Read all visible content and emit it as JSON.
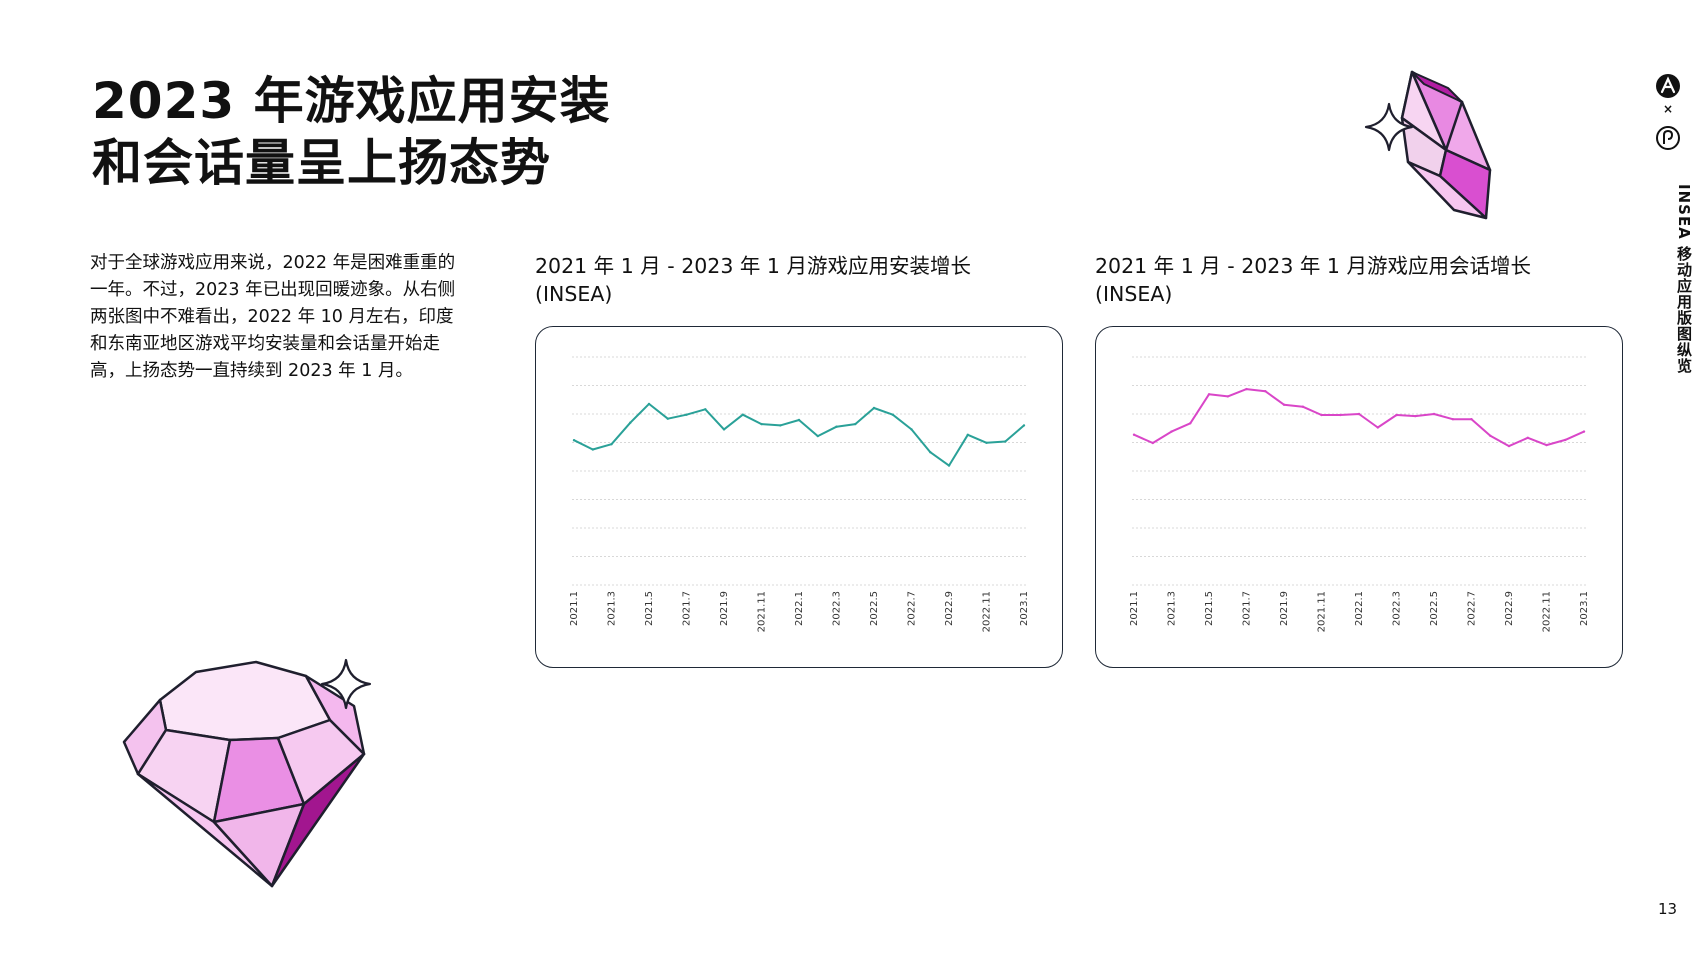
{
  "page": {
    "title_line1": "2023 年游戏应用安装",
    "title_line2": "和会话量呈上扬态势",
    "body": "对于全球游戏应用来说，2022 年是困难重重的一年。不过，2023 年已出现回暖迹象。从右侧两张图中不难看出，2022 年 10 月左右，印度和东南亚地区游戏平均安装量和会话量开始走高，上扬态势一直持续到 2023 年 1 月。",
    "sidebar_label": "INSEA 移动应用版图纵览",
    "page_number": "13",
    "logo_separator": "×"
  },
  "colors": {
    "installs_line": "#2aa198",
    "sessions_line": "#d946c8",
    "gem_light": "#f5c6ef",
    "gem_mid": "#e889e2",
    "gem_dark": "#b21ea3"
  },
  "icons": [
    "applovin-logo-icon",
    "partner-logo-icon",
    "crystal-decoration-icon",
    "gem-decoration-icon",
    "sparkle-icon"
  ],
  "chart_data": [
    {
      "type": "line",
      "title_line1": "2021 年 1 月 - 2023 年 1 月游戏应用安装增长",
      "title_line2": "(INSEA)",
      "tick_labels": [
        "2021.1",
        "2021.3",
        "2021.5",
        "2021.7",
        "2021.9",
        "2021.11",
        "2022.1",
        "2022.3",
        "2022.5",
        "2022.7",
        "2022.9",
        "2022.11",
        "2023.1"
      ],
      "x": [
        "2021.1",
        "2021.2",
        "2021.3",
        "2021.4",
        "2021.5",
        "2021.6",
        "2021.7",
        "2021.8",
        "2021.9",
        "2021.10",
        "2021.11",
        "2021.12",
        "2022.1",
        "2022.2",
        "2022.3",
        "2022.4",
        "2022.5",
        "2022.6",
        "2022.7",
        "2022.8",
        "2022.9",
        "2022.10",
        "2022.11",
        "2022.12",
        "2023.1"
      ],
      "series": [
        {
          "values": [
            5.4,
            5.05,
            5.25,
            6.05,
            6.75,
            6.2,
            6.35,
            6.55,
            5.8,
            6.35,
            6.0,
            5.95,
            6.15,
            5.55,
            5.9,
            6.0,
            6.6,
            6.35,
            5.8,
            4.95,
            4.45,
            5.6,
            5.3,
            5.35,
            5.95
          ]
        }
      ],
      "ylim": [
        0,
        8.5
      ],
      "grid": true,
      "legend": "none"
    },
    {
      "type": "line",
      "title_line1": "2021 年 1 月 - 2023 年 1 月游戏应用会话增长",
      "title_line2": "(INSEA)",
      "tick_labels": [
        "2021.1",
        "2021.3",
        "2021.5",
        "2021.7",
        "2021.9",
        "2021.11",
        "2022.1",
        "2022.3",
        "2022.5",
        "2022.7",
        "2022.9",
        "2022.11",
        "2023.1"
      ],
      "x": [
        "2021.1",
        "2021.2",
        "2021.3",
        "2021.4",
        "2021.5",
        "2021.6",
        "2021.7",
        "2021.8",
        "2021.9",
        "2021.10",
        "2021.11",
        "2021.12",
        "2022.1",
        "2022.2",
        "2022.3",
        "2022.4",
        "2022.5",
        "2022.6",
        "2022.7",
        "2022.8",
        "2022.9",
        "2022.10",
        "2022.11",
        "2022.12",
        "2023.1"
      ],
      "series": [
        {
          "values": [
            7.25,
            6.85,
            7.4,
            7.8,
            9.2,
            9.1,
            9.45,
            9.35,
            8.7,
            8.6,
            8.2,
            8.2,
            8.25,
            7.6,
            8.2,
            8.15,
            8.25,
            8.0,
            8.0,
            7.2,
            6.7,
            7.1,
            6.75,
            7.0,
            7.4
          ]
        }
      ],
      "ylim": [
        0,
        11
      ],
      "grid": true,
      "legend": "none"
    }
  ]
}
